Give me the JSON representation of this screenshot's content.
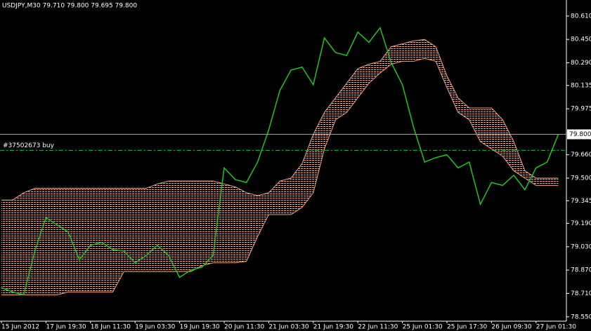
{
  "chart_data": {
    "type": "line",
    "title": "USDJPY,M30  79.710 79.800 79.695 79.800",
    "ylim": [
      78.52,
      80.72
    ],
    "yticks": [
      {
        "value": 80.61,
        "label": "80.610"
      },
      {
        "value": 80.45,
        "label": "80.450"
      },
      {
        "value": 80.29,
        "label": "80.290"
      },
      {
        "value": 80.135,
        "label": "80.135"
      },
      {
        "value": 79.975,
        "label": "79.975"
      },
      {
        "value": 79.66,
        "label": "79.660"
      },
      {
        "value": 79.5,
        "label": "79.500"
      },
      {
        "value": 79.345,
        "label": "79.345"
      },
      {
        "value": 79.19,
        "label": "79.190"
      },
      {
        "value": 79.03,
        "label": "79.030"
      },
      {
        "value": 78.87,
        "label": "78.870"
      },
      {
        "value": 78.71,
        "label": "78.710"
      },
      {
        "value": 78.55,
        "label": "78.550"
      }
    ],
    "x_labels": [
      "15 Jun 2012",
      "17 Jun 19:30",
      "18 Jun 11:30",
      "19 Jun 03:30",
      "19 Jun 19:30",
      "20 Jun 11:30",
      "21 Jun 03:30",
      "21 Jun 19:30",
      "22 Jun 11:30",
      "25 Jun 01:30",
      "25 Jun 17:30",
      "26 Jun 09:30",
      "27 Jun 01:30"
    ],
    "price": {
      "color": "#22c322",
      "values": [
        78.75,
        78.72,
        78.7,
        79.0,
        79.23,
        79.18,
        79.13,
        78.94,
        79.04,
        79.06,
        79.01,
        79.0,
        78.92,
        78.97,
        79.04,
        78.97,
        78.82,
        78.87,
        78.89,
        78.97,
        79.57,
        79.49,
        79.47,
        79.61,
        79.83,
        80.1,
        80.24,
        80.26,
        80.14,
        80.46,
        80.36,
        80.34,
        80.5,
        80.43,
        80.53,
        80.29,
        80.14,
        79.85,
        79.61,
        79.64,
        79.66,
        79.57,
        79.61,
        79.32,
        79.47,
        79.45,
        79.52,
        79.42,
        79.57,
        79.61,
        79.8
      ]
    },
    "cloud": {
      "color": "#f4a58a",
      "span_a": [
        79.35,
        79.35,
        79.4,
        79.43,
        79.43,
        79.43,
        79.43,
        79.43,
        79.43,
        79.43,
        79.43,
        79.43,
        79.43,
        79.43,
        79.46,
        79.48,
        79.48,
        79.48,
        79.48,
        79.48,
        79.46,
        79.44,
        79.4,
        79.38,
        79.4,
        79.48,
        79.5,
        79.6,
        79.8,
        79.95,
        80.05,
        80.15,
        80.25,
        80.28,
        80.3,
        80.4,
        80.42,
        80.44,
        80.45,
        80.4,
        80.2,
        80.05,
        79.98,
        79.98,
        79.98,
        79.9,
        79.75,
        79.55,
        79.5,
        79.5,
        79.5
      ],
      "span_b": [
        78.7,
        78.7,
        78.7,
        78.7,
        78.7,
        78.7,
        78.72,
        78.72,
        78.72,
        78.72,
        78.72,
        78.86,
        78.86,
        78.86,
        78.86,
        78.86,
        78.86,
        78.86,
        78.9,
        78.92,
        78.92,
        78.92,
        78.93,
        79.1,
        79.25,
        79.25,
        79.25,
        79.3,
        79.4,
        79.7,
        79.9,
        79.95,
        80.05,
        80.15,
        80.22,
        80.28,
        80.3,
        80.3,
        80.32,
        80.3,
        80.12,
        79.95,
        79.9,
        79.75,
        79.7,
        79.65,
        79.55,
        79.5,
        79.45,
        79.45,
        79.45
      ]
    },
    "last_price": {
      "value": 79.8,
      "label": "79.800"
    },
    "order": {
      "label": "#37502673 buy",
      "value": 79.69,
      "color": "#22c322"
    }
  }
}
